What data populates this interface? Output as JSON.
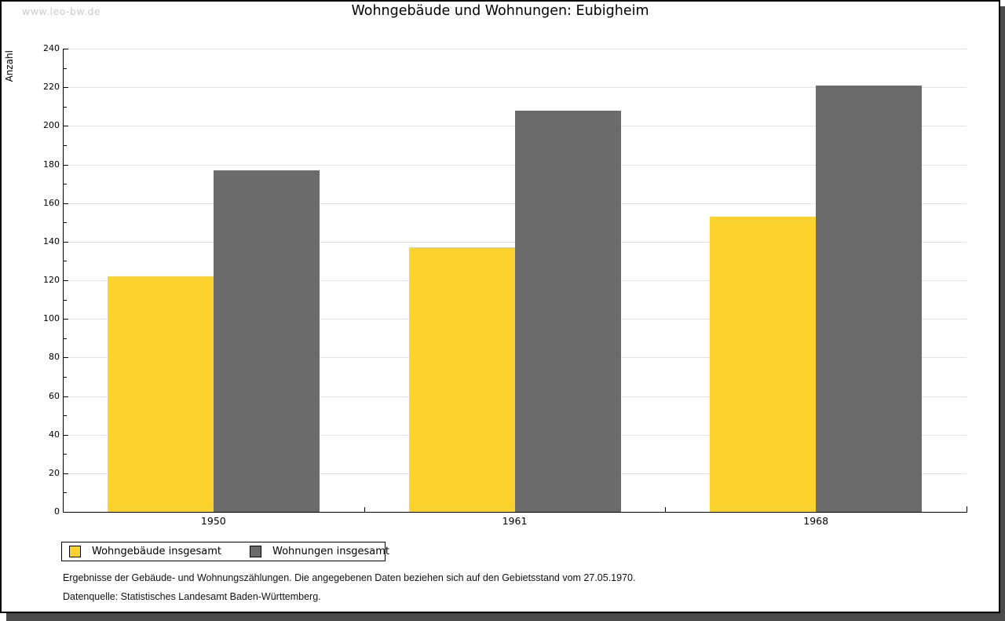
{
  "watermark": "www.leo-bw.de",
  "title": "Wohngebäude und Wohnungen: Eubigheim",
  "chart_data": {
    "type": "bar",
    "title": "Wohngebäude und Wohnungen: Eubigheim",
    "xlabel": "",
    "ylabel": "Anzahl",
    "categories": [
      "1950",
      "1961",
      "1968"
    ],
    "series": [
      {
        "name": "Wohngebäude insgesamt",
        "color": "#fcd32d",
        "values": [
          122,
          137,
          153
        ]
      },
      {
        "name": "Wohnungen insgesamt",
        "color": "#6b6b6b",
        "values": [
          177,
          208,
          221
        ]
      }
    ],
    "ylim": [
      0,
      240
    ],
    "yticks": [
      0,
      20,
      40,
      60,
      80,
      100,
      120,
      140,
      160,
      180,
      200,
      220,
      240
    ],
    "minor_tick_step": 10,
    "grid": true,
    "legend_position": "bottom-left"
  },
  "footnotes": [
    "Ergebnisse der Gebäude- und Wohnungszählungen. Die angegebenen Daten beziehen sich auf den Gebietsstand vom 27.05.1970.",
    "Datenquelle: Statistisches Landesamt Baden-Württemberg."
  ],
  "colors": {
    "bar_yellow": "#fcd32d",
    "bar_gray": "#6b6b6b",
    "gridline": "#e3e3e3",
    "watermark_text": "#cbcbcb",
    "frame_shadow": "#4b4b4b",
    "axis": "#000000"
  }
}
